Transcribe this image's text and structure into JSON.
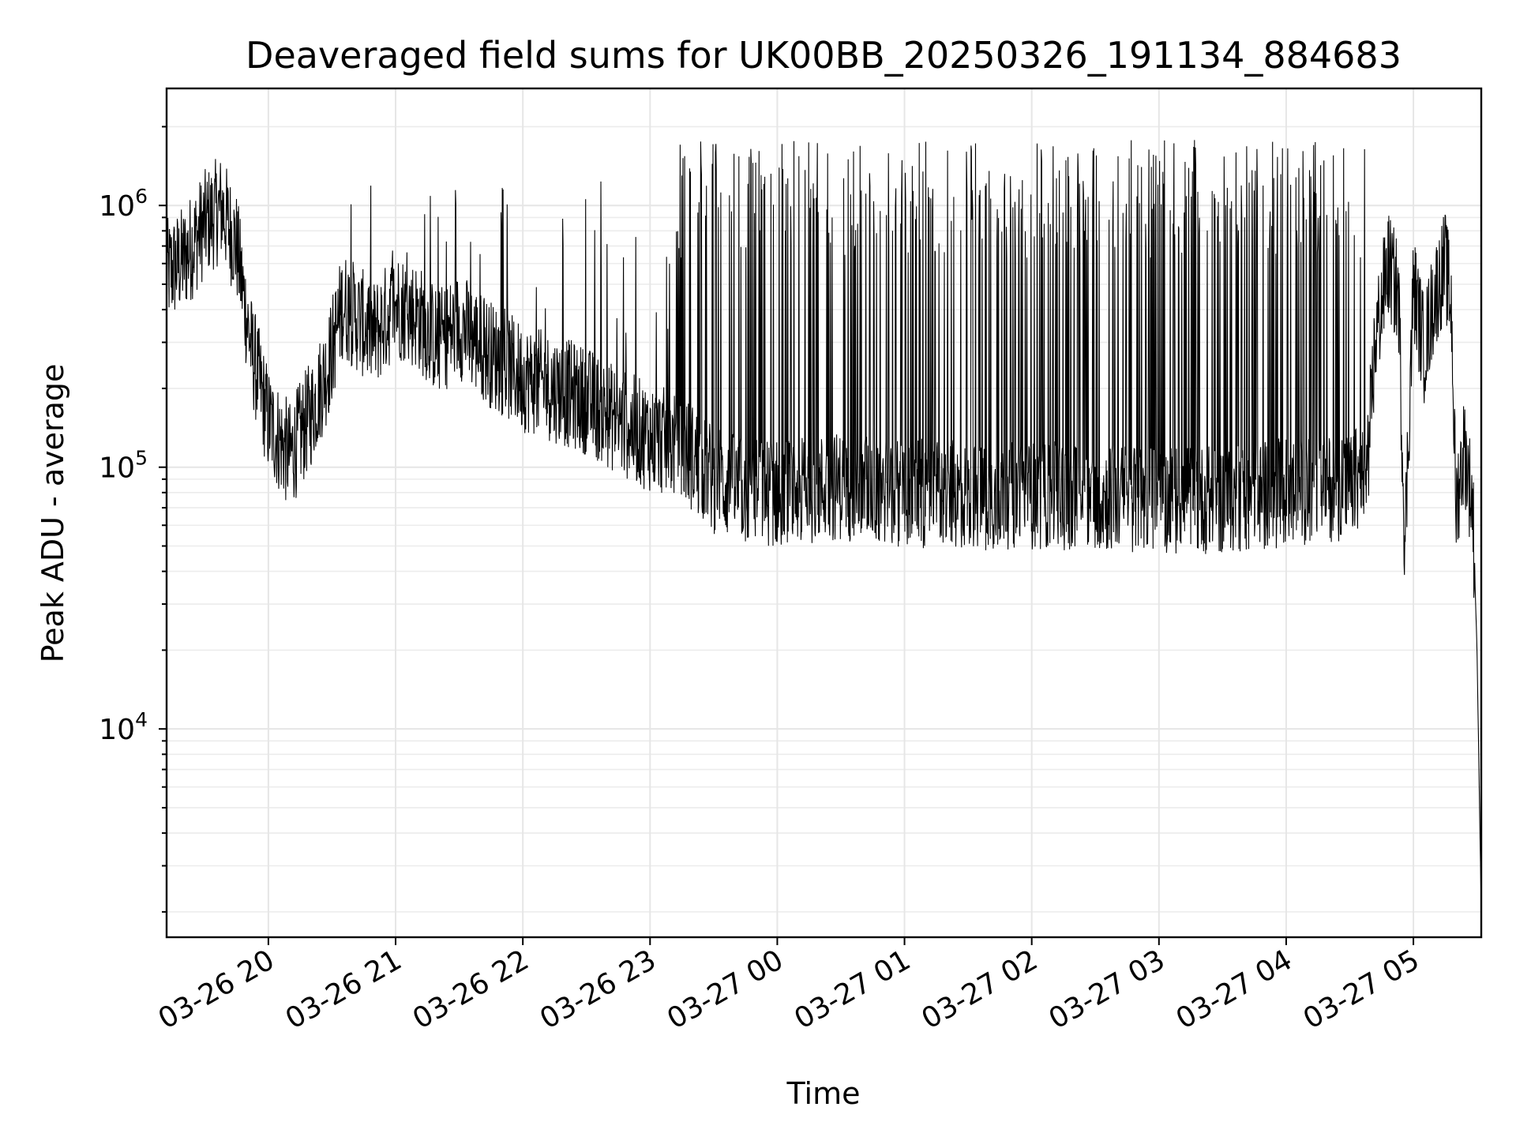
{
  "chart_data": {
    "type": "line",
    "title": "Deaveraged field sums for UK00BB_20250326_191134_884683",
    "xlabel": "Time",
    "ylabel": "Peak ADU - average",
    "x_scale": "time",
    "y_scale": "log",
    "x_range": [
      "2025-03-26 19:12",
      "2025-03-27 05:32"
    ],
    "ylim": [
      1600,
      2800000
    ],
    "x_ticks": [
      "2025-03-26 20:00",
      "2025-03-26 21:00",
      "2025-03-26 22:00",
      "2025-03-26 23:00",
      "2025-03-27 00:00",
      "2025-03-27 01:00",
      "2025-03-27 02:00",
      "2025-03-27 03:00",
      "2025-03-27 04:00",
      "2025-03-27 05:00"
    ],
    "x_tick_labels": [
      "03-26 20",
      "03-26 21",
      "03-26 22",
      "03-26 23",
      "03-27 00",
      "03-27 01",
      "03-27 02",
      "03-27 03",
      "03-27 04",
      "03-27 05"
    ],
    "y_ticks": [
      10000,
      100000,
      1000000
    ],
    "y_tick_labels": [
      {
        "base": "10",
        "exp": "4"
      },
      {
        "base": "10",
        "exp": "5"
      },
      {
        "base": "10",
        "exp": "6"
      }
    ],
    "grid": "both (major and minor)",
    "legend": "none",
    "series": [
      {
        "color": "#000000",
        "points": [
          [
            "2025-03-26 19:12",
            550000
          ],
          [
            "2025-03-26 19:20",
            620000
          ],
          [
            "2025-03-26 19:30",
            850000
          ],
          [
            "2025-03-26 19:38",
            980000
          ],
          [
            "2025-03-26 19:45",
            700000
          ],
          [
            "2025-03-26 19:52",
            280000
          ],
          [
            "2025-03-26 20:00",
            150000
          ],
          [
            "2025-03-26 20:10",
            110000
          ],
          [
            "2025-03-26 20:20",
            160000
          ],
          [
            "2025-03-26 20:28",
            240000
          ],
          [
            "2025-03-26 20:35",
            420000
          ],
          [
            "2025-03-26 20:50",
            320000
          ],
          [
            "2025-03-26 21:00",
            420000
          ],
          [
            "2025-03-26 21:10",
            380000
          ],
          [
            "2025-03-26 21:20",
            300000
          ],
          [
            "2025-03-26 21:30",
            350000
          ],
          [
            "2025-03-26 21:45",
            270000
          ],
          [
            "2025-03-26 22:00",
            220000
          ],
          [
            "2025-03-26 22:15",
            200000
          ],
          [
            "2025-03-26 22:30",
            180000
          ],
          [
            "2025-03-26 22:45",
            150000
          ],
          [
            "2025-03-26 23:00",
            130000
          ],
          [
            "2025-03-26 23:15",
            120000
          ],
          [
            "2025-03-26 23:30",
            90000
          ],
          [
            "2025-03-26 23:45",
            80000
          ],
          [
            "2025-03-27 00:00",
            80000
          ],
          [
            "2025-03-27 00:30",
            85000
          ],
          [
            "2025-03-27 01:00",
            80000
          ],
          [
            "2025-03-27 01:30",
            78000
          ],
          [
            "2025-03-27 02:00",
            78000
          ],
          [
            "2025-03-27 02:30",
            77000
          ],
          [
            "2025-03-27 03:00",
            76000
          ],
          [
            "2025-03-27 03:30",
            75000
          ],
          [
            "2025-03-27 04:00",
            80000
          ],
          [
            "2025-03-27 04:30",
            85000
          ],
          [
            "2025-03-27 04:38",
            95000
          ],
          [
            "2025-03-27 04:42",
            300000
          ],
          [
            "2025-03-27 04:48",
            600000
          ],
          [
            "2025-03-27 04:53",
            450000
          ],
          [
            "2025-03-27 04:56",
            50000
          ],
          [
            "2025-03-27 05:00",
            500000
          ],
          [
            "2025-03-27 05:05",
            280000
          ],
          [
            "2025-03-27 05:10",
            450000
          ],
          [
            "2025-03-27 05:15",
            600000
          ],
          [
            "2025-03-27 05:18",
            400000
          ],
          [
            "2025-03-27 05:20",
            70000
          ],
          [
            "2025-03-27 05:24",
            120000
          ],
          [
            "2025-03-27 05:28",
            70000
          ],
          [
            "2025-03-27 05:30",
            20000
          ],
          [
            "2025-03-27 05:32",
            2000
          ]
        ]
      }
    ]
  }
}
